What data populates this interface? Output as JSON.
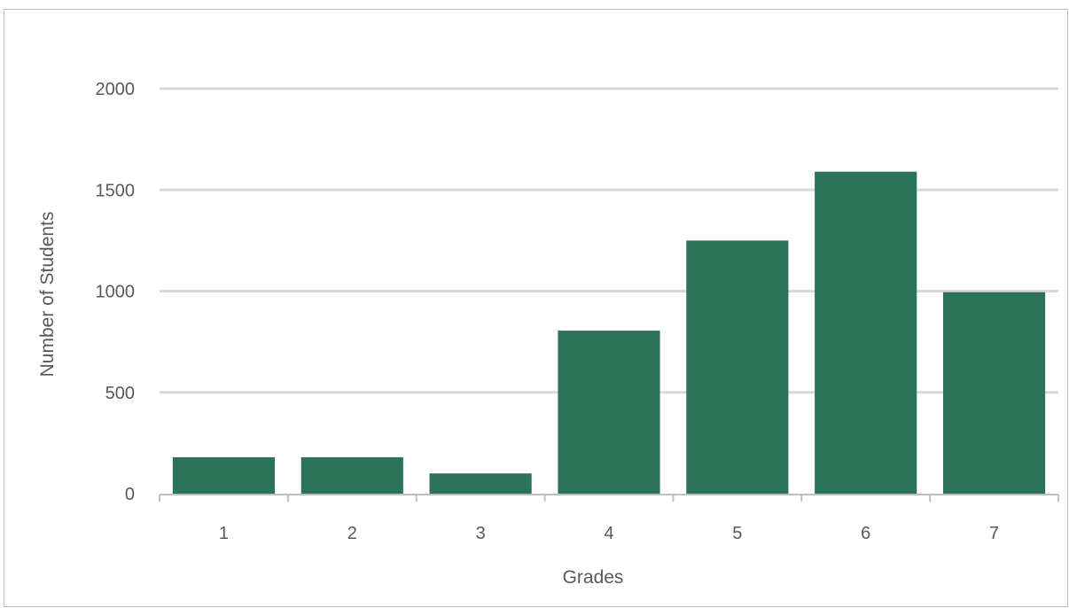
{
  "chart_data": {
    "type": "bar",
    "title": "",
    "xlabel": "Grades",
    "ylabel": "Number of Students",
    "categories": [
      "1",
      "2",
      "3",
      "4",
      "5",
      "6",
      "7"
    ],
    "values": [
      180,
      180,
      100,
      805,
      1250,
      1590,
      995
    ],
    "ylim": [
      0,
      2000
    ],
    "yticks": [
      0,
      500,
      1000,
      1500,
      2000
    ],
    "grid": true,
    "legend": "none",
    "bar_color": "#2b7359",
    "grid_color": "#d9d9d9",
    "axis_color": "#bfbfbf",
    "text_color": "#595959"
  }
}
